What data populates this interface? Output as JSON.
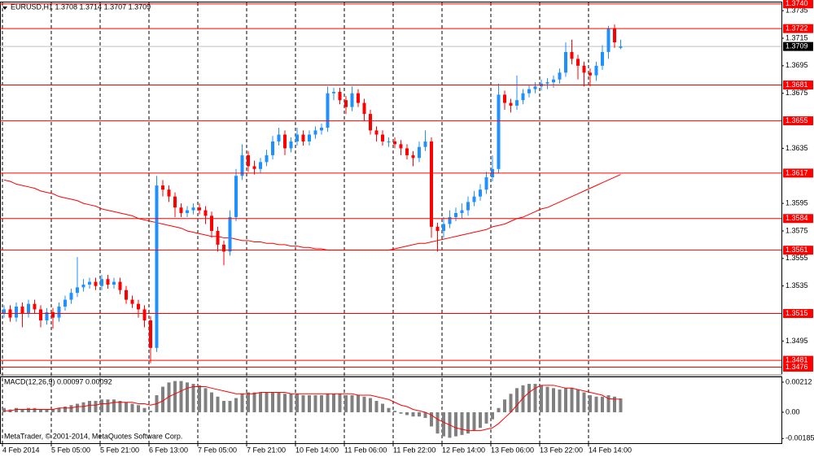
{
  "chart_data": [
    {
      "type": "candlestick",
      "title": "EURUSD,H1  1.3708 1.3714 1.3707 1.3709",
      "categories": [
        "4 Feb 2014",
        null,
        null,
        null,
        null,
        null,
        null,
        null,
        "5 Feb 05:00",
        null,
        null,
        null,
        null,
        null,
        null,
        null,
        "5 Feb 21:00",
        null,
        null,
        null,
        null,
        null,
        null,
        null,
        "6 Feb 13:00",
        null,
        null,
        null,
        null,
        null,
        null,
        null,
        "7 Feb 05:00",
        null,
        null,
        null,
        null,
        null,
        null,
        null,
        "7 Feb 21:00",
        null,
        null,
        null,
        null,
        null,
        null,
        null,
        "10 Feb 14:00",
        null,
        null,
        null,
        null,
        null,
        null,
        null,
        "11 Feb 06:00",
        null,
        null,
        null,
        null,
        null,
        null,
        null,
        "11 Feb 22:00",
        null,
        null,
        null,
        null,
        null,
        null,
        null,
        "12 Feb 14:00",
        null,
        null,
        null,
        null,
        null,
        null,
        null,
        "13 Feb 06:00",
        null,
        null,
        null,
        null,
        null,
        null,
        null,
        "13 Feb 22:00",
        null,
        null,
        null,
        null,
        null,
        null,
        null,
        "14 Feb 14:00",
        null,
        null,
        null,
        null,
        null
      ],
      "open": [
        1.3515,
        1.3518,
        1.3512,
        1.352,
        1.3515,
        1.3522,
        1.3518,
        1.351,
        1.3516,
        1.3512,
        1.352,
        1.3525,
        1.353,
        1.3534,
        1.3536,
        1.3538,
        1.3535,
        1.354,
        1.3536,
        1.3538,
        1.3532,
        1.3525,
        1.3522,
        1.3518,
        1.351,
        1.349,
        1.3608,
        1.3605,
        1.36,
        1.3592,
        1.3588,
        1.359,
        1.3592,
        1.359,
        1.3586,
        1.3575,
        1.3565,
        1.356,
        1.3585,
        1.3615,
        1.363,
        1.3622,
        1.362,
        1.3625,
        1.363,
        1.364,
        1.3645,
        1.3635,
        1.364,
        1.3645,
        1.364,
        1.3645,
        1.3648,
        1.365,
        1.3675,
        1.3676,
        1.367,
        1.3665,
        1.3675,
        1.3668,
        1.366,
        1.3648,
        1.3645,
        1.364,
        1.364,
        1.3638,
        1.3635,
        1.363,
        1.3628,
        1.3636,
        1.364,
        1.3578,
        1.3575,
        1.358,
        1.3585,
        1.3588,
        1.359,
        1.3596,
        1.36,
        1.3605,
        1.3614,
        1.362,
        1.3674,
        1.3668,
        1.3666,
        1.367,
        1.3675,
        1.3678,
        1.368,
        1.3682,
        1.3683,
        1.3685,
        1.369,
        1.3705,
        1.37,
        1.3695,
        1.369,
        1.3688,
        1.3695,
        1.3705,
        1.3722,
        1.3708
      ],
      "high": [
        1.3521,
        1.3521,
        1.3523,
        1.3523,
        1.3525,
        1.3525,
        1.3521,
        1.3519,
        1.3519,
        1.3523,
        1.3528,
        1.3533,
        1.3556,
        1.354,
        1.3541,
        1.3541,
        1.3543,
        1.3543,
        1.3541,
        1.3541,
        1.3535,
        1.3528,
        1.3525,
        1.3521,
        1.3513,
        1.3615,
        1.3612,
        1.3608,
        1.3603,
        1.3595,
        1.3593,
        1.3595,
        1.3595,
        1.3593,
        1.3589,
        1.3578,
        1.3568,
        1.359,
        1.362,
        1.3638,
        1.3633,
        1.3626,
        1.3628,
        1.3634,
        1.3644,
        1.365,
        1.3648,
        1.3643,
        1.365,
        1.3648,
        1.3648,
        1.3651,
        1.3653,
        1.368,
        1.3679,
        1.3679,
        1.3673,
        1.368,
        1.3678,
        1.3671,
        1.3663,
        1.3651,
        1.3648,
        1.3643,
        1.3643,
        1.3641,
        1.3638,
        1.3633,
        1.364,
        1.3648,
        1.3643,
        1.3581,
        1.3585,
        1.359,
        1.3592,
        1.3595,
        1.36,
        1.3604,
        1.3609,
        1.3618,
        1.363,
        1.3682,
        1.3677,
        1.3671,
        1.3688,
        1.3678,
        1.3681,
        1.3683,
        1.3685,
        1.3686,
        1.3688,
        1.3693,
        1.3712,
        1.3714,
        1.3703,
        1.3698,
        1.3693,
        1.3698,
        1.371,
        1.3724,
        1.3725,
        1.3714
      ],
      "low": [
        1.3512,
        1.3509,
        1.3509,
        1.3505,
        1.3512,
        1.3515,
        1.3505,
        1.3507,
        1.3504,
        1.3509,
        1.3517,
        1.3522,
        1.3527,
        1.3531,
        1.3533,
        1.3532,
        1.3532,
        1.3533,
        1.3533,
        1.3529,
        1.3522,
        1.3519,
        1.3512,
        1.3505,
        1.3479,
        1.3487,
        1.36,
        1.3596,
        1.3585,
        1.3585,
        1.3585,
        1.3587,
        1.3587,
        1.358,
        1.357,
        1.356,
        1.355,
        1.3557,
        1.3582,
        1.3612,
        1.3618,
        1.3616,
        1.3617,
        1.3622,
        1.3627,
        1.3637,
        1.363,
        1.3632,
        1.3637,
        1.3637,
        1.3637,
        1.3642,
        1.3645,
        1.3647,
        1.367,
        1.3667,
        1.366,
        1.3662,
        1.3665,
        1.3655,
        1.3645,
        1.364,
        1.3637,
        1.3636,
        1.3635,
        1.363,
        1.3627,
        1.3622,
        1.3625,
        1.3633,
        1.357,
        1.356,
        1.357,
        1.3577,
        1.3582,
        1.3584,
        1.3586,
        1.3593,
        1.3597,
        1.3602,
        1.3611,
        1.3617,
        1.3663,
        1.3661,
        1.3663,
        1.3667,
        1.3672,
        1.3675,
        1.3677,
        1.3678,
        1.3679,
        1.3682,
        1.3687,
        1.3696,
        1.3685,
        1.368,
        1.368,
        1.3684,
        1.3692,
        1.37,
        1.3708,
        1.3707
      ],
      "close": [
        1.3518,
        1.3512,
        1.352,
        1.3515,
        1.3522,
        1.3518,
        1.351,
        1.3516,
        1.3512,
        1.352,
        1.3525,
        1.353,
        1.3534,
        1.3536,
        1.3538,
        1.3535,
        1.354,
        1.3536,
        1.3538,
        1.3532,
        1.3525,
        1.3522,
        1.3518,
        1.351,
        1.349,
        1.3608,
        1.3605,
        1.36,
        1.3592,
        1.3588,
        1.359,
        1.3592,
        1.359,
        1.3586,
        1.3575,
        1.3565,
        1.356,
        1.3585,
        1.3615,
        1.363,
        1.3622,
        1.362,
        1.3625,
        1.363,
        1.364,
        1.3645,
        1.3635,
        1.364,
        1.3645,
        1.364,
        1.3645,
        1.3648,
        1.365,
        1.3675,
        1.3676,
        1.367,
        1.3665,
        1.3675,
        1.3668,
        1.366,
        1.3648,
        1.3645,
        1.364,
        1.364,
        1.3638,
        1.3635,
        1.363,
        1.3628,
        1.3636,
        1.364,
        1.3578,
        1.3575,
        1.358,
        1.3585,
        1.3588,
        1.359,
        1.3596,
        1.36,
        1.3605,
        1.3614,
        1.362,
        1.3674,
        1.3668,
        1.3666,
        1.367,
        1.3675,
        1.3678,
        1.368,
        1.3682,
        1.3683,
        1.3685,
        1.369,
        1.3705,
        1.37,
        1.3695,
        1.369,
        1.3688,
        1.3695,
        1.3705,
        1.3722,
        1.3712,
        1.3709
      ],
      "up_color": "#1e90ff",
      "down_color": "#ff0000",
      "moving_average": {
        "color": "#ff0000",
        "values": [
          1.3612,
          1.3611,
          1.3609,
          1.3608,
          1.3607,
          1.3606,
          1.3604,
          1.3603,
          1.3602,
          1.36,
          1.3599,
          1.3598,
          1.3597,
          1.3595,
          1.3594,
          1.3593,
          1.3591,
          1.359,
          1.3589,
          1.3588,
          1.3587,
          1.3586,
          1.3584,
          1.3583,
          1.3582,
          1.3581,
          1.358,
          1.3579,
          1.3578,
          1.3577,
          1.3575,
          1.3574,
          1.3573,
          1.3572,
          1.3571,
          1.3571,
          1.357,
          1.357,
          1.3569,
          1.3568,
          1.3568,
          1.3567,
          1.3567,
          1.3566,
          1.3566,
          1.3565,
          1.3565,
          1.3564,
          1.3564,
          1.3563,
          1.3563,
          1.3562,
          1.3562,
          1.3561,
          1.3561,
          1.3561,
          1.3561,
          1.3561,
          1.3561,
          1.3561,
          1.3561,
          1.3561,
          1.3561,
          1.3561,
          1.3562,
          1.3563,
          1.3564,
          1.3565,
          1.3566,
          1.3566,
          1.3567,
          1.3568,
          1.3569,
          1.357,
          1.3571,
          1.3572,
          1.3573,
          1.3574,
          1.3575,
          1.3576,
          1.3578,
          1.3579,
          1.358,
          1.3582,
          1.3584,
          1.3585,
          1.3587,
          1.3589,
          1.3591,
          1.3592,
          1.3594,
          1.3596,
          1.3598,
          1.36,
          1.3602,
          1.3604,
          1.3606,
          1.3608,
          1.361,
          1.3612,
          1.3614,
          1.3616
        ]
      },
      "levels": [
        {
          "value": 1.374,
          "label": "1.3740"
        },
        1.3722,
        1.3681,
        1.3655,
        1.3617,
        1.3584,
        1.3561,
        1.3515,
        1.3481,
        1.3476
      ],
      "level_color": "#ff0000",
      "last_price": 1.3709,
      "ylim": [
        1.3471,
        1.3741
      ],
      "yticks": [
        1.3735,
        1.3715,
        1.3695,
        1.3675,
        1.3635,
        1.3595,
        1.3575,
        1.3555,
        1.3535,
        1.3495
      ],
      "grid": true
    },
    {
      "type": "macd",
      "title": "MACD(12,26,9) 0.00097 0.00092",
      "footer": "MetaTrader, © 2001-2014, MetaQuotes Software Corp.",
      "series": [
        {
          "kind": "histogram",
          "color": "#808080",
          "values": [
            0.0003,
            0.0002,
            0.0003,
            0.0002,
            0.0003,
            0.0003,
            0.0002,
            0.0002,
            0.0002,
            0.0003,
            0.0004,
            0.0005,
            0.0006,
            0.0007,
            0.0008,
            0.0008,
            0.0009,
            0.0009,
            0.0009,
            0.0008,
            0.0007,
            0.0006,
            0.0005,
            0.0003,
            0.0001,
            0.0012,
            0.0018,
            0.0021,
            0.0022,
            0.0022,
            0.0021,
            0.002,
            0.0019,
            0.0017,
            0.0014,
            0.0011,
            0.0008,
            0.0008,
            0.001,
            0.0013,
            0.0014,
            0.0014,
            0.0014,
            0.0014,
            0.0014,
            0.0014,
            0.0013,
            0.0013,
            0.0013,
            0.0012,
            0.0012,
            0.0012,
            0.0012,
            0.0013,
            0.0013,
            0.0013,
            0.0012,
            0.0012,
            0.0012,
            0.0011,
            0.001,
            0.0008,
            0.0006,
            0.0003,
            0.0001,
            -0.0001,
            -0.0002,
            -0.0003,
            -0.0003,
            -0.0004,
            -0.001,
            -0.0015,
            -0.0017,
            -0.0018,
            -0.0017,
            -0.0016,
            -0.0015,
            -0.0013,
            -0.0011,
            -0.0008,
            -0.0005,
            0.0003,
            0.0009,
            0.0013,
            0.0017,
            0.0019,
            0.002,
            0.002,
            0.0019,
            0.0018,
            0.0017,
            0.0016,
            0.0017,
            0.0017,
            0.0016,
            0.0014,
            0.0012,
            0.0011,
            0.0011,
            0.0012,
            0.0011,
            0.00097
          ]
        },
        {
          "kind": "signal",
          "color": "#ff0000",
          "values": [
            0.0001,
            0.0001,
            0.0002,
            0.0002,
            0.0002,
            0.0002,
            0.0002,
            0.0002,
            0.0002,
            0.0003,
            0.0003,
            0.0003,
            0.0004,
            0.0004,
            0.0005,
            0.0005,
            0.0006,
            0.0006,
            0.0007,
            0.0007,
            0.0007,
            0.0007,
            0.0006,
            0.0006,
            0.0005,
            0.0006,
            0.0008,
            0.0011,
            0.0013,
            0.0015,
            0.0017,
            0.0018,
            0.0018,
            0.0018,
            0.0017,
            0.0016,
            0.0015,
            0.0014,
            0.0013,
            0.0013,
            0.0013,
            0.0013,
            0.0014,
            0.0014,
            0.0014,
            0.0014,
            0.0014,
            0.0013,
            0.0013,
            0.0013,
            0.0013,
            0.0013,
            0.0013,
            0.0013,
            0.0013,
            0.0013,
            0.0013,
            0.0013,
            0.0012,
            0.0012,
            0.0012,
            0.0011,
            0.001,
            0.0009,
            0.0007,
            0.0005,
            0.0004,
            0.0002,
            0.0001,
            0.0,
            -0.0002,
            -0.0005,
            -0.0007,
            -0.0009,
            -0.0011,
            -0.0012,
            -0.0013,
            -0.0013,
            -0.0013,
            -0.0012,
            -0.0011,
            -0.0008,
            -0.0004,
            0.0,
            0.0005,
            0.001,
            0.0014,
            0.0017,
            0.0019,
            0.0019,
            0.0019,
            0.0018,
            0.0017,
            0.0017,
            0.0016,
            0.0015,
            0.0014,
            0.0013,
            0.0012,
            0.00095,
            0.00093,
            0.00092
          ]
        }
      ],
      "ylim": [
        -0.00218,
        0.00252
      ],
      "yticks": [
        0.00212,
        {
          "value": 0,
          "label": "0.00"
        },
        -0.00185
      ]
    }
  ]
}
